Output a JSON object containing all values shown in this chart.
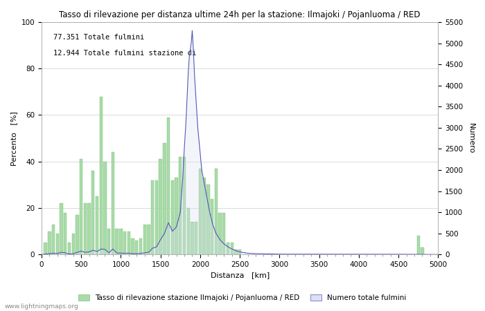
{
  "title": "Tasso di rilevazione per distanza ultime 24h per la stazione: Ilmajoki / Pojanluoma / RED",
  "xlabel": "Distanza   [km]",
  "ylabel_left": "Percento   [%]",
  "ylabel_right": "Numero",
  "annotation_line1": "77.351 Totale fulmini",
  "annotation_line2": "12.944 Totale fulmini stazione di",
  "legend_green": "Tasso di rilevazione stazione Ilmajoki / Pojanluoma / RED",
  "legend_blue": "Numero totale fulmini",
  "watermark": "www.lightningmaps.org",
  "xlim": [
    0,
    5000
  ],
  "ylim_left": [
    0,
    100
  ],
  "ylim_right": [
    0,
    5500
  ],
  "yticks_left": [
    0,
    20,
    40,
    60,
    80,
    100
  ],
  "yticks_right": [
    0,
    500,
    1000,
    1500,
    2000,
    2500,
    3000,
    3500,
    4000,
    4500,
    5000,
    5500
  ],
  "xticks": [
    0,
    500,
    1000,
    1500,
    2000,
    2500,
    3000,
    3500,
    4000,
    4500,
    5000
  ],
  "bar_color": "#a8dba8",
  "bar_edge_color": "#80c080",
  "fill_color": "#dde0f5",
  "line_color": "#5555bb",
  "background_color": "#ffffff",
  "grid_color": "#cccccc",
  "bar_distances": [
    50,
    100,
    150,
    200,
    250,
    300,
    350,
    400,
    450,
    500,
    550,
    600,
    650,
    700,
    750,
    800,
    850,
    900,
    950,
    1000,
    1050,
    1100,
    1150,
    1200,
    1250,
    1300,
    1350,
    1400,
    1450,
    1500,
    1550,
    1600,
    1650,
    1700,
    1750,
    1800,
    1850,
    1900,
    1950,
    2000,
    2050,
    2100,
    2150,
    2200,
    2250,
    2300,
    2350,
    2400,
    2450,
    2500,
    4750,
    4800
  ],
  "bar_values": [
    5,
    10,
    13,
    9,
    22,
    18,
    5,
    9,
    17,
    41,
    22,
    22,
    36,
    25,
    68,
    40,
    11,
    44,
    11,
    11,
    10,
    10,
    7,
    6,
    7,
    13,
    13,
    32,
    32,
    41,
    48,
    59,
    32,
    33,
    42,
    42,
    20,
    14,
    14,
    37,
    33,
    30,
    24,
    37,
    18,
    18,
    5,
    5,
    2,
    2,
    8,
    3
  ],
  "line_distances": [
    0,
    50,
    100,
    150,
    200,
    250,
    300,
    350,
    400,
    450,
    500,
    550,
    600,
    650,
    700,
    750,
    800,
    850,
    900,
    950,
    1000,
    1050,
    1100,
    1150,
    1200,
    1250,
    1300,
    1350,
    1400,
    1450,
    1500,
    1550,
    1600,
    1650,
    1700,
    1750,
    1780,
    1800,
    1810,
    1820,
    1830,
    1840,
    1850,
    1860,
    1870,
    1880,
    1890,
    1900,
    1910,
    1920,
    1930,
    1940,
    1950,
    1960,
    1970,
    1980,
    1990,
    2000,
    2010,
    2020,
    2030,
    2040,
    2050,
    2060,
    2070,
    2080,
    2090,
    2100,
    2120,
    2140,
    2160,
    2180,
    2200,
    2250,
    2300,
    2350,
    2400,
    2450,
    2500,
    2600,
    2700,
    3000,
    4500,
    5000
  ],
  "line_values_right": [
    0,
    10,
    20,
    30,
    25,
    50,
    40,
    10,
    20,
    50,
    80,
    50,
    60,
    100,
    70,
    130,
    120,
    40,
    130,
    35,
    30,
    30,
    30,
    20,
    20,
    25,
    40,
    50,
    150,
    180,
    350,
    500,
    750,
    550,
    650,
    1000,
    1800,
    2500,
    2800,
    3100,
    3500,
    3900,
    4300,
    4600,
    4800,
    4900,
    5050,
    5300,
    5000,
    4600,
    4200,
    3900,
    3600,
    3300,
    3000,
    2800,
    2600,
    2400,
    2200,
    2000,
    1900,
    1800,
    1700,
    1600,
    1500,
    1400,
    1300,
    1200,
    1000,
    850,
    700,
    600,
    500,
    350,
    250,
    180,
    130,
    90,
    60,
    30,
    20,
    8,
    5,
    0
  ]
}
